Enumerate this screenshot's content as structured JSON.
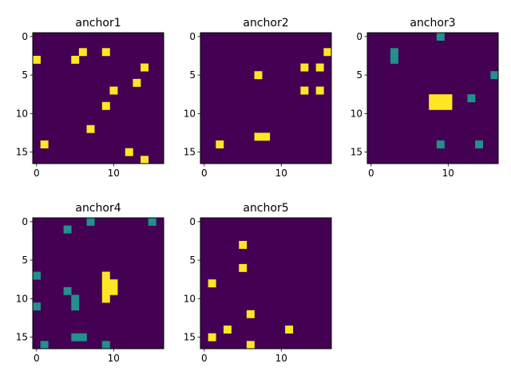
{
  "chart_data": {
    "type": "heatmap",
    "figure_layout": "2 rows x 3 columns (last slot empty)",
    "grid_shape": [
      17,
      17
    ],
    "colormap": "viridis",
    "color_values": {
      "background": 0,
      "mid": 1,
      "high": 2
    },
    "colors": {
      "background": "#440154",
      "mid": "#21918c",
      "high": "#fde725"
    },
    "xticks": [
      "0",
      "10"
    ],
    "yticks": [
      "0",
      "5",
      "10",
      "15"
    ],
    "panels": [
      {
        "title": "anchor1",
        "yellow": [
          [
            3,
            0
          ],
          [
            2,
            6
          ],
          [
            3,
            5
          ],
          [
            2,
            9
          ],
          [
            4,
            14
          ],
          [
            6,
            13
          ],
          [
            7,
            10
          ],
          [
            9,
            9
          ],
          [
            12,
            7
          ],
          [
            14,
            1
          ],
          [
            15,
            12
          ],
          [
            16,
            14
          ]
        ],
        "teal": []
      },
      {
        "title": "anchor2",
        "yellow": [
          [
            2,
            16
          ],
          [
            4,
            13
          ],
          [
            4,
            15
          ],
          [
            5,
            7
          ],
          [
            7,
            13
          ],
          [
            7,
            15
          ],
          [
            13,
            7
          ],
          [
            13,
            8
          ],
          [
            14,
            2
          ]
        ],
        "teal": []
      },
      {
        "title": "anchor3",
        "yellow": [
          [
            8,
            8
          ],
          [
            8,
            9
          ],
          [
            8,
            10
          ],
          [
            9,
            8
          ],
          [
            9,
            9
          ],
          [
            9,
            10
          ]
        ],
        "teal": [
          [
            0,
            9
          ],
          [
            2,
            3
          ],
          [
            3,
            3
          ],
          [
            5,
            16
          ],
          [
            8,
            13
          ],
          [
            14,
            9
          ],
          [
            14,
            14
          ]
        ]
      },
      {
        "title": "anchor4",
        "yellow": [
          [
            7,
            9
          ],
          [
            8,
            9
          ],
          [
            8,
            10
          ],
          [
            9,
            9
          ],
          [
            9,
            10
          ],
          [
            10,
            9
          ]
        ],
        "teal": [
          [
            0,
            7
          ],
          [
            0,
            15
          ],
          [
            1,
            4
          ],
          [
            7,
            0
          ],
          [
            9,
            4
          ],
          [
            10,
            5
          ],
          [
            11,
            0
          ],
          [
            11,
            5
          ],
          [
            15,
            5
          ],
          [
            15,
            6
          ],
          [
            16,
            1
          ],
          [
            16,
            9
          ]
        ]
      },
      {
        "title": "anchor5",
        "yellow": [
          [
            3,
            5
          ],
          [
            6,
            5
          ],
          [
            8,
            1
          ],
          [
            12,
            6
          ],
          [
            14,
            3
          ],
          [
            14,
            11
          ],
          [
            15,
            1
          ],
          [
            16,
            6
          ]
        ],
        "teal": []
      }
    ]
  }
}
